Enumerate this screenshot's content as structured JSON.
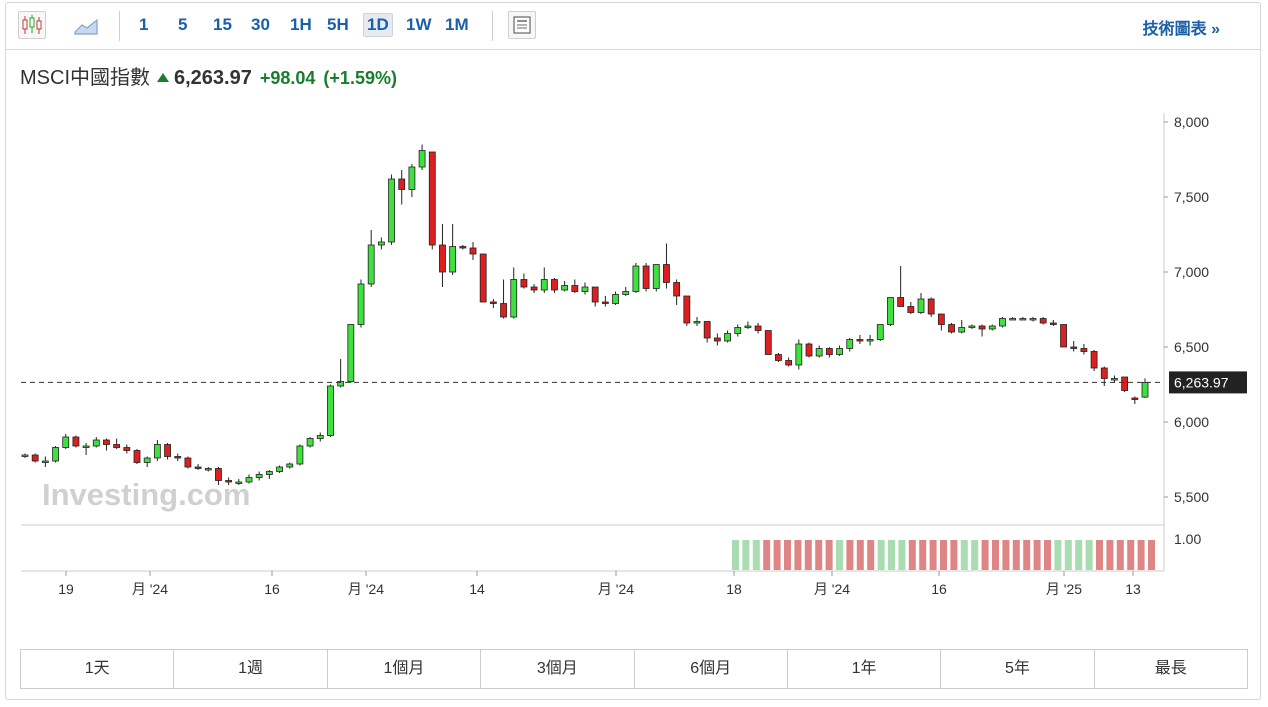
{
  "toolbar": {
    "icons": [
      "candlestick-chart-icon",
      "area-chart-icon",
      "news-panel-icon"
    ],
    "timeframes": [
      "1",
      "5",
      "15",
      "30",
      "1H",
      "5H",
      "1D",
      "1W",
      "1M"
    ],
    "active_timeframe": "1D",
    "tech_chart_label": "技術圖表 »"
  },
  "header": {
    "name": "MSCI中國指數",
    "price": "6,263.97",
    "change": "+98.04",
    "change_pct": "(+1.59%)",
    "direction": "up"
  },
  "colors": {
    "up": "#3fe13f",
    "down": "#dd1f1f",
    "change_text": "#1a7d2e",
    "link": "#1b5fa8",
    "vol_up": "#a9dcb0",
    "vol_down": "#e08585"
  },
  "chart_data": {
    "type": "candlestick",
    "ylim": [
      5350,
      8050
    ],
    "yticks": [
      "8,000",
      "7,500",
      "7,000",
      "6,500",
      "6,000",
      "5,500"
    ],
    "current_price_label": "6,263.97",
    "current_price": 6263.97,
    "watermark": "Investing.com",
    "xticks": [
      "19",
      "月 '24",
      "16",
      "月 '24",
      "14",
      "月 '24",
      "18",
      "月 '24",
      "16",
      "月 '25",
      "13"
    ],
    "volume_label": "1.00",
    "candles": [
      [
        5780,
        5790,
        5760,
        5780
      ],
      [
        5780,
        5790,
        5730,
        5740
      ],
      [
        5740,
        5770,
        5700,
        5740
      ],
      [
        5740,
        5840,
        5730,
        5830
      ],
      [
        5830,
        5920,
        5820,
        5900
      ],
      [
        5900,
        5910,
        5830,
        5840
      ],
      [
        5840,
        5860,
        5780,
        5840
      ],
      [
        5840,
        5900,
        5830,
        5880
      ],
      [
        5880,
        5890,
        5810,
        5850
      ],
      [
        5850,
        5890,
        5820,
        5830
      ],
      [
        5830,
        5850,
        5790,
        5810
      ],
      [
        5810,
        5820,
        5720,
        5730
      ],
      [
        5730,
        5770,
        5700,
        5760
      ],
      [
        5760,
        5880,
        5740,
        5850
      ],
      [
        5850,
        5860,
        5750,
        5770
      ],
      [
        5770,
        5790,
        5740,
        5760
      ],
      [
        5760,
        5770,
        5690,
        5700
      ],
      [
        5700,
        5720,
        5680,
        5690
      ],
      [
        5690,
        5700,
        5670,
        5690
      ],
      [
        5690,
        5700,
        5580,
        5610
      ],
      [
        5610,
        5630,
        5580,
        5600
      ],
      [
        5600,
        5620,
        5580,
        5600
      ],
      [
        5600,
        5650,
        5590,
        5630
      ],
      [
        5630,
        5670,
        5610,
        5650
      ],
      [
        5650,
        5680,
        5620,
        5670
      ],
      [
        5670,
        5710,
        5660,
        5700
      ],
      [
        5700,
        5730,
        5690,
        5720
      ],
      [
        5720,
        5850,
        5710,
        5840
      ],
      [
        5840,
        5900,
        5830,
        5890
      ],
      [
        5890,
        5930,
        5870,
        5910
      ],
      [
        5910,
        6250,
        5900,
        6240
      ],
      [
        6240,
        6420,
        6230,
        6270
      ],
      [
        6270,
        6650,
        6260,
        6650
      ],
      [
        6650,
        6950,
        6630,
        6920
      ],
      [
        6920,
        7280,
        6900,
        7180
      ],
      [
        7180,
        7230,
        7150,
        7200
      ],
      [
        7200,
        7650,
        7180,
        7620
      ],
      [
        7620,
        7680,
        7450,
        7550
      ],
      [
        7550,
        7720,
        7500,
        7700
      ],
      [
        7700,
        7850,
        7680,
        7810
      ],
      [
        7800,
        7800,
        7150,
        7180
      ],
      [
        7180,
        7320,
        6900,
        7000
      ],
      [
        7000,
        7320,
        6980,
        7170
      ],
      [
        7170,
        7180,
        7150,
        7160
      ],
      [
        7160,
        7200,
        7080,
        7120
      ],
      [
        7120,
        7120,
        6800,
        6800
      ],
      [
        6800,
        6820,
        6760,
        6790
      ],
      [
        6790,
        6950,
        6690,
        6700
      ],
      [
        6700,
        7030,
        6690,
        6950
      ],
      [
        6950,
        6990,
        6890,
        6900
      ],
      [
        6900,
        6920,
        6860,
        6880
      ],
      [
        6880,
        7030,
        6860,
        6950
      ],
      [
        6950,
        6960,
        6860,
        6880
      ],
      [
        6880,
        6940,
        6870,
        6910
      ],
      [
        6910,
        6950,
        6860,
        6870
      ],
      [
        6870,
        6930,
        6850,
        6900
      ],
      [
        6900,
        6900,
        6770,
        6800
      ],
      [
        6800,
        6840,
        6770,
        6790
      ],
      [
        6790,
        6870,
        6780,
        6850
      ],
      [
        6850,
        6900,
        6840,
        6870
      ],
      [
        6870,
        7060,
        6860,
        7040
      ],
      [
        7040,
        7060,
        6870,
        6890
      ],
      [
        6890,
        7050,
        6870,
        7050
      ],
      [
        7050,
        7190,
        6890,
        6930
      ],
      [
        6930,
        6950,
        6780,
        6840
      ],
      [
        6840,
        6840,
        6640,
        6660
      ],
      [
        6660,
        6700,
        6640,
        6670
      ],
      [
        6670,
        6670,
        6530,
        6560
      ],
      [
        6560,
        6590,
        6510,
        6540
      ],
      [
        6540,
        6610,
        6530,
        6590
      ],
      [
        6590,
        6650,
        6570,
        6630
      ],
      [
        6630,
        6670,
        6620,
        6640
      ],
      [
        6640,
        6660,
        6590,
        6610
      ],
      [
        6610,
        6610,
        6450,
        6450
      ],
      [
        6450,
        6460,
        6400,
        6410
      ],
      [
        6410,
        6430,
        6370,
        6380
      ],
      [
        6380,
        6550,
        6350,
        6520
      ],
      [
        6520,
        6530,
        6430,
        6440
      ],
      [
        6440,
        6510,
        6430,
        6490
      ],
      [
        6490,
        6500,
        6430,
        6450
      ],
      [
        6450,
        6510,
        6440,
        6490
      ],
      [
        6490,
        6560,
        6470,
        6550
      ],
      [
        6550,
        6580,
        6520,
        6540
      ],
      [
        6540,
        6580,
        6510,
        6550
      ],
      [
        6550,
        6650,
        6540,
        6650
      ],
      [
        6650,
        6830,
        6640,
        6830
      ],
      [
        6830,
        7040,
        6770,
        6770
      ],
      [
        6770,
        6800,
        6720,
        6730
      ],
      [
        6730,
        6860,
        6720,
        6820
      ],
      [
        6820,
        6830,
        6700,
        6720
      ],
      [
        6720,
        6720,
        6610,
        6650
      ],
      [
        6650,
        6660,
        6590,
        6600
      ],
      [
        6600,
        6680,
        6590,
        6630
      ],
      [
        6630,
        6650,
        6620,
        6640
      ],
      [
        6640,
        6650,
        6570,
        6620
      ],
      [
        6620,
        6650,
        6610,
        6640
      ],
      [
        6640,
        6700,
        6630,
        6690
      ],
      [
        6690,
        6700,
        6680,
        6690
      ],
      [
        6690,
        6700,
        6680,
        6690
      ],
      [
        6690,
        6700,
        6670,
        6690
      ],
      [
        6690,
        6700,
        6650,
        6660
      ],
      [
        6660,
        6680,
        6640,
        6650
      ],
      [
        6650,
        6650,
        6500,
        6500
      ],
      [
        6500,
        6540,
        6470,
        6490
      ],
      [
        6490,
        6520,
        6450,
        6470
      ],
      [
        6470,
        6480,
        6340,
        6360
      ],
      [
        6360,
        6370,
        6240,
        6290
      ],
      [
        6290,
        6310,
        6260,
        6290
      ],
      [
        6300,
        6300,
        6200,
        6210
      ],
      [
        6160,
        6170,
        6120,
        6150
      ],
      [
        6166,
        6290,
        6160,
        6264
      ]
    ],
    "volume": [
      "u",
      "u",
      "u",
      "d",
      "d",
      "d",
      "d",
      "d",
      "d",
      "d",
      "u",
      "d",
      "d",
      "d",
      "u",
      "u",
      "u",
      "d",
      "d",
      "d",
      "d",
      "d",
      "u",
      "u",
      "d",
      "d",
      "d",
      "d",
      "d",
      "d",
      "d",
      "u",
      "u",
      "u",
      "u",
      "d",
      "d",
      "d",
      "d",
      "d",
      "d"
    ]
  },
  "ranges": [
    "1天",
    "1週",
    "1個月",
    "3個月",
    "6個月",
    "1年",
    "5年",
    "最長"
  ]
}
